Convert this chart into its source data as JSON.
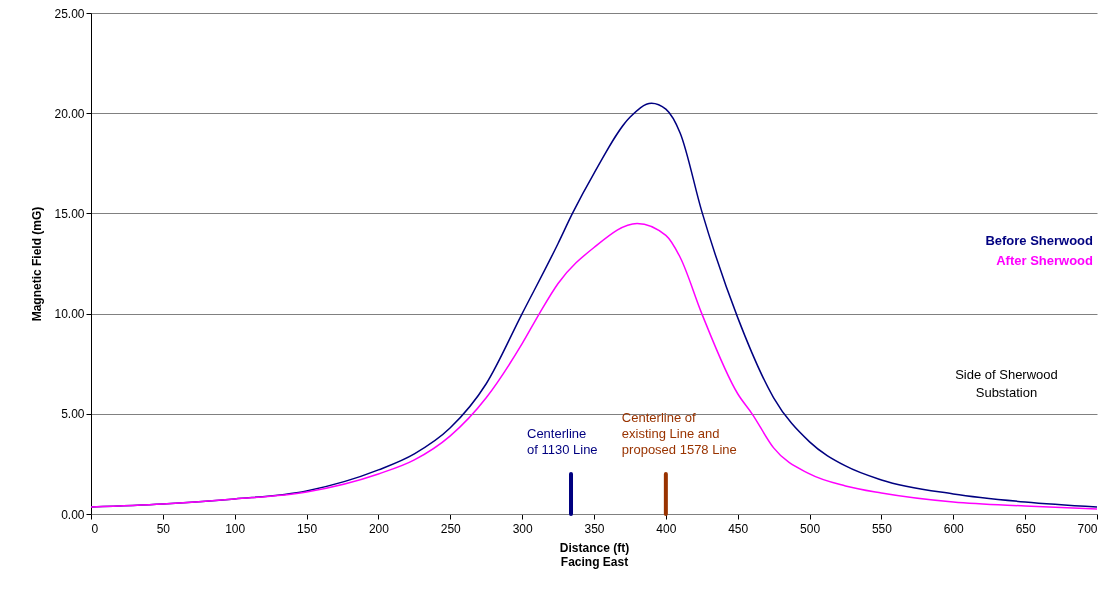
{
  "chart_data": {
    "type": "line",
    "xlabel": "Distance (ft)\nFacing East",
    "ylabel": "Magnetic Field (mG)",
    "xlim": [
      0,
      700
    ],
    "xticks": [
      0,
      50,
      100,
      150,
      200,
      250,
      300,
      350,
      400,
      450,
      500,
      550,
      600,
      650,
      700
    ],
    "ylim": [
      0,
      25
    ],
    "yticks": [
      {
        "value": 0,
        "label": "0.00"
      },
      {
        "value": 5,
        "label": "5.00"
      },
      {
        "value": 10,
        "label": "10.00"
      },
      {
        "value": 15,
        "label": "15.00"
      },
      {
        "value": 20,
        "label": "20.00"
      },
      {
        "value": 25,
        "label": "25.00"
      }
    ],
    "grid": "y",
    "series": [
      {
        "name": "Before Sherwood",
        "color": "#000080",
        "x": [
          0,
          50,
          100,
          150,
          200,
          225,
          250,
          275,
          300,
          325,
          335,
          350,
          375,
          390,
          400,
          410,
          425,
          450,
          475,
          500,
          525,
          550,
          600,
          650,
          700
        ],
        "values": [
          0.35,
          0.5,
          0.75,
          1.15,
          2.2,
          3.0,
          4.3,
          6.5,
          10.0,
          13.5,
          15.0,
          17.0,
          19.8,
          20.5,
          20.2,
          19.0,
          15.1,
          9.8,
          5.8,
          3.6,
          2.4,
          1.7,
          1.0,
          0.6,
          0.35
        ]
      },
      {
        "name": "After Sherwood",
        "color": "#ff00ff",
        "x": [
          0,
          50,
          100,
          150,
          200,
          225,
          250,
          275,
          300,
          312,
          325,
          350,
          380,
          400,
          410,
          425,
          450,
          460,
          475,
          500,
          525,
          550,
          600,
          650,
          700
        ],
        "values": [
          0.35,
          0.5,
          0.75,
          1.1,
          2.0,
          2.7,
          3.9,
          5.8,
          8.5,
          10.0,
          11.5,
          13.3,
          14.5,
          13.9,
          12.8,
          10.0,
          6.0,
          5.0,
          3.3,
          2.0,
          1.4,
          1.05,
          0.6,
          0.4,
          0.25
        ]
      },
      {
        "color": "#000080",
        "x": [
          334,
          334
        ],
        "values": [
          0,
          2
        ]
      },
      {
        "color": "#993300",
        "x": [
          400,
          400
        ],
        "values": [
          0,
          2
        ]
      }
    ],
    "annotations": [
      {
        "text": "Centerline\nof 1130 Line",
        "x": 334,
        "y": 2
      },
      {
        "text": "Centerline of\nexisting  Line and\nproposed 1578 Line",
        "x": 400,
        "y": 2
      },
      "Side of Sherwood\nSubstation"
    ]
  }
}
